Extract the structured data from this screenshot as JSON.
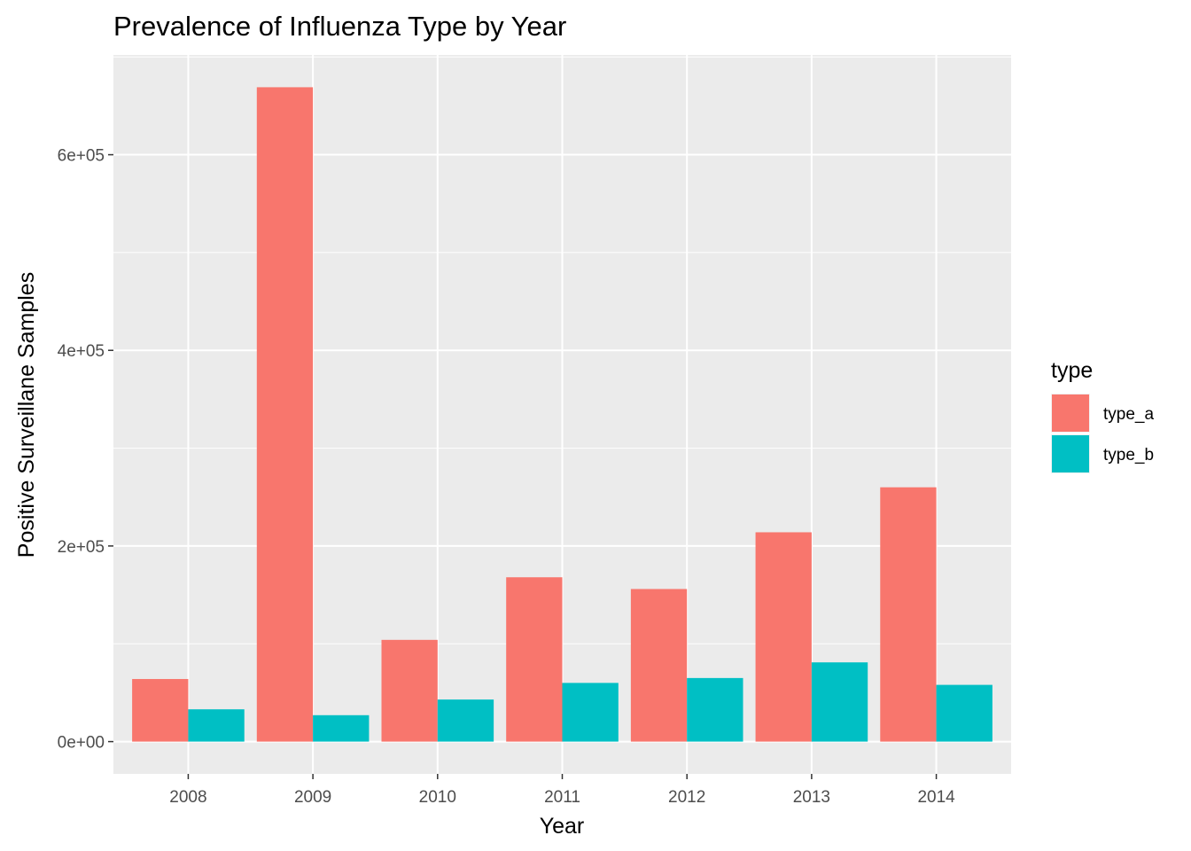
{
  "chart_data": {
    "type": "bar",
    "title": "Prevalence of Influenza Type by Year",
    "xlabel": "Year",
    "ylabel": "Positive Surveillane Samples",
    "categories": [
      "2008",
      "2009",
      "2010",
      "2011",
      "2012",
      "2013",
      "2014"
    ],
    "series": [
      {
        "name": "type_a",
        "color": "#F8766D",
        "values": [
          64000,
          669000,
          104000,
          168000,
          156000,
          214000,
          260000
        ]
      },
      {
        "name": "type_b",
        "color": "#00BFC4",
        "values": [
          33000,
          27000,
          43000,
          60000,
          65000,
          81000,
          58000
        ]
      }
    ],
    "ylim": [
      -33000,
      702000
    ],
    "yticks": [
      0,
      200000,
      400000,
      600000
    ],
    "ytick_labels": [
      "0e+00",
      "2e+05",
      "4e+05",
      "6e+05"
    ],
    "grid": true,
    "legend": {
      "title": "type",
      "position": "right"
    },
    "panel_background": "#EBEBEB",
    "grid_color": "#FFFFFF"
  }
}
